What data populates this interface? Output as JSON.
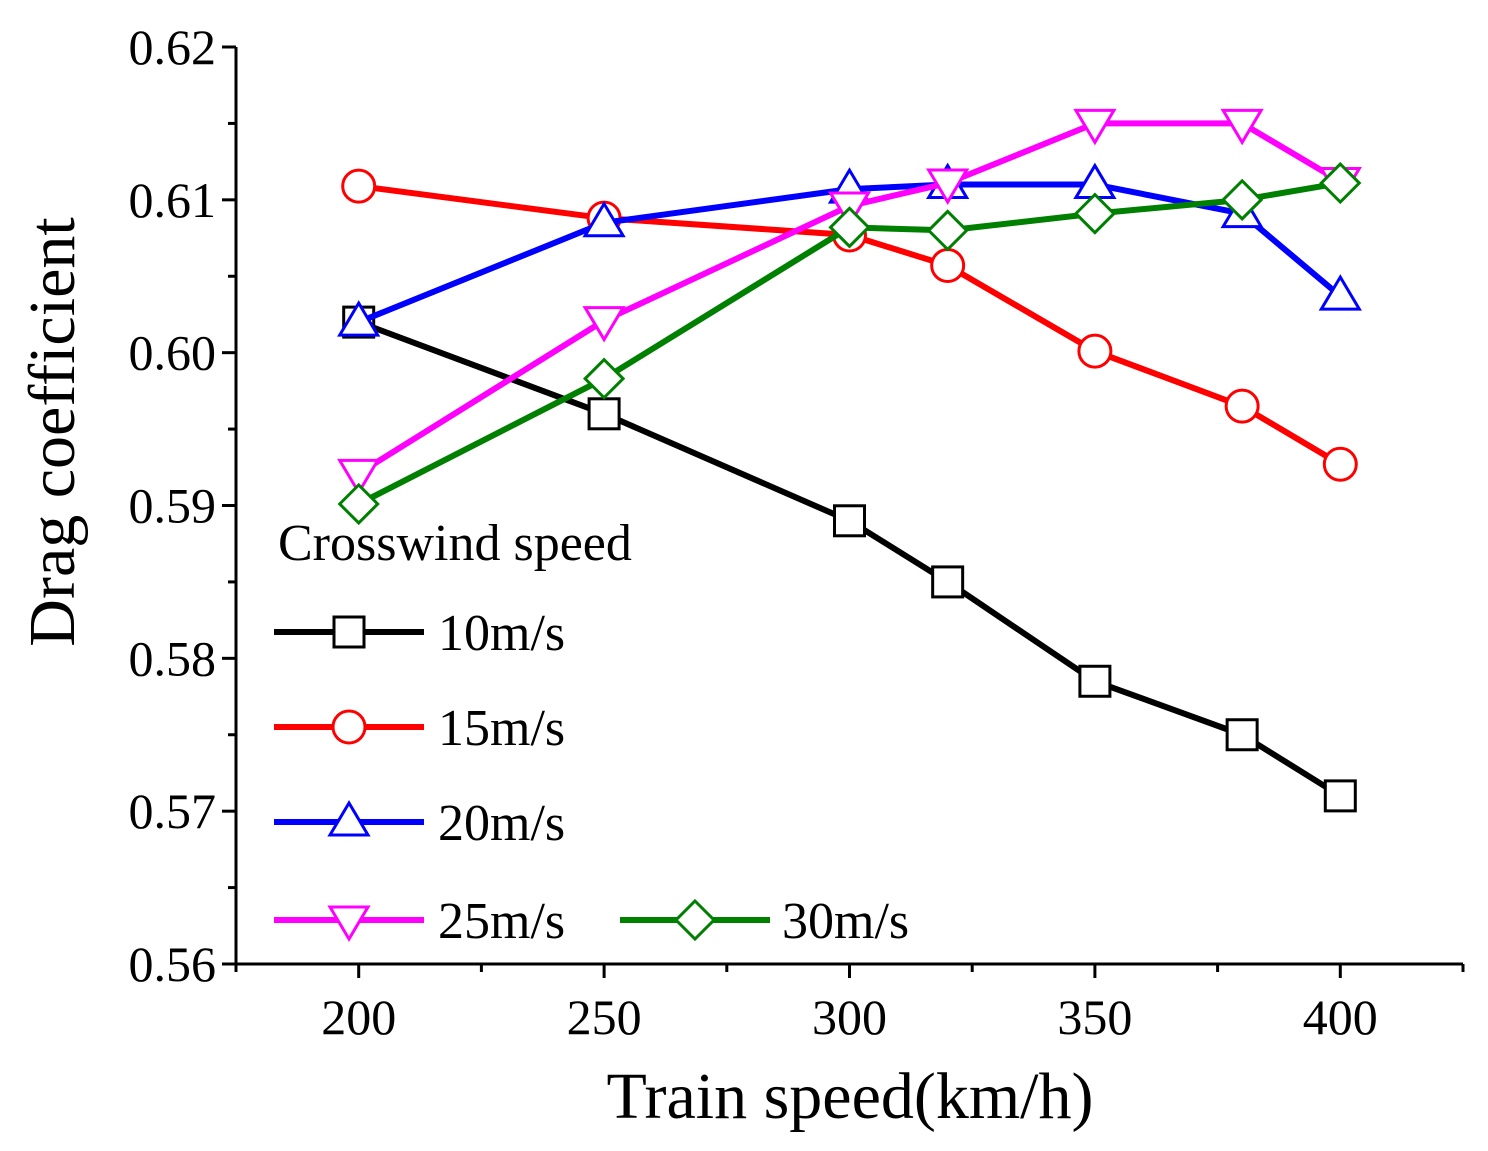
{
  "chart_data": {
    "type": "line",
    "xlabel": "Train speed(km/h)",
    "ylabel": "Drag coefficient",
    "xlim": [
      175,
      425
    ],
    "ylim": [
      0.56,
      0.62
    ],
    "x_ticks": [
      "200",
      "250",
      "300",
      "350",
      "400"
    ],
    "y_ticks": [
      "0.56",
      "0.57",
      "0.58",
      "0.59",
      "0.60",
      "0.61",
      "0.62"
    ],
    "x": [
      200,
      250,
      300,
      320,
      350,
      380,
      400
    ],
    "legend_title": "Crosswind speed",
    "series": [
      {
        "name": "10m/s",
        "color": "#000000",
        "marker": "square",
        "values": [
          0.602,
          0.596,
          0.589,
          0.585,
          0.5785,
          0.575,
          0.571
        ]
      },
      {
        "name": "15m/s",
        "color": "#ff0000",
        "marker": "circle",
        "values": [
          0.6109,
          0.6088,
          0.6077,
          0.6057,
          0.6001,
          0.5965,
          0.5927
        ]
      },
      {
        "name": "20m/s",
        "color": "#0000ff",
        "marker": "triangle-up",
        "values": [
          0.602,
          0.6085,
          0.6107,
          0.611,
          0.611,
          0.6091,
          0.6037
        ]
      },
      {
        "name": "25m/s",
        "color": "#ff00ff",
        "marker": "triangle-down",
        "values": [
          0.5921,
          0.6021,
          0.6096,
          0.6111,
          0.615,
          0.615,
          0.6112
        ]
      },
      {
        "name": "30m/s",
        "color": "#008000",
        "marker": "diamond",
        "values": [
          0.5901,
          0.5983,
          0.6082,
          0.608,
          0.6091,
          0.61,
          0.6111
        ]
      }
    ]
  }
}
